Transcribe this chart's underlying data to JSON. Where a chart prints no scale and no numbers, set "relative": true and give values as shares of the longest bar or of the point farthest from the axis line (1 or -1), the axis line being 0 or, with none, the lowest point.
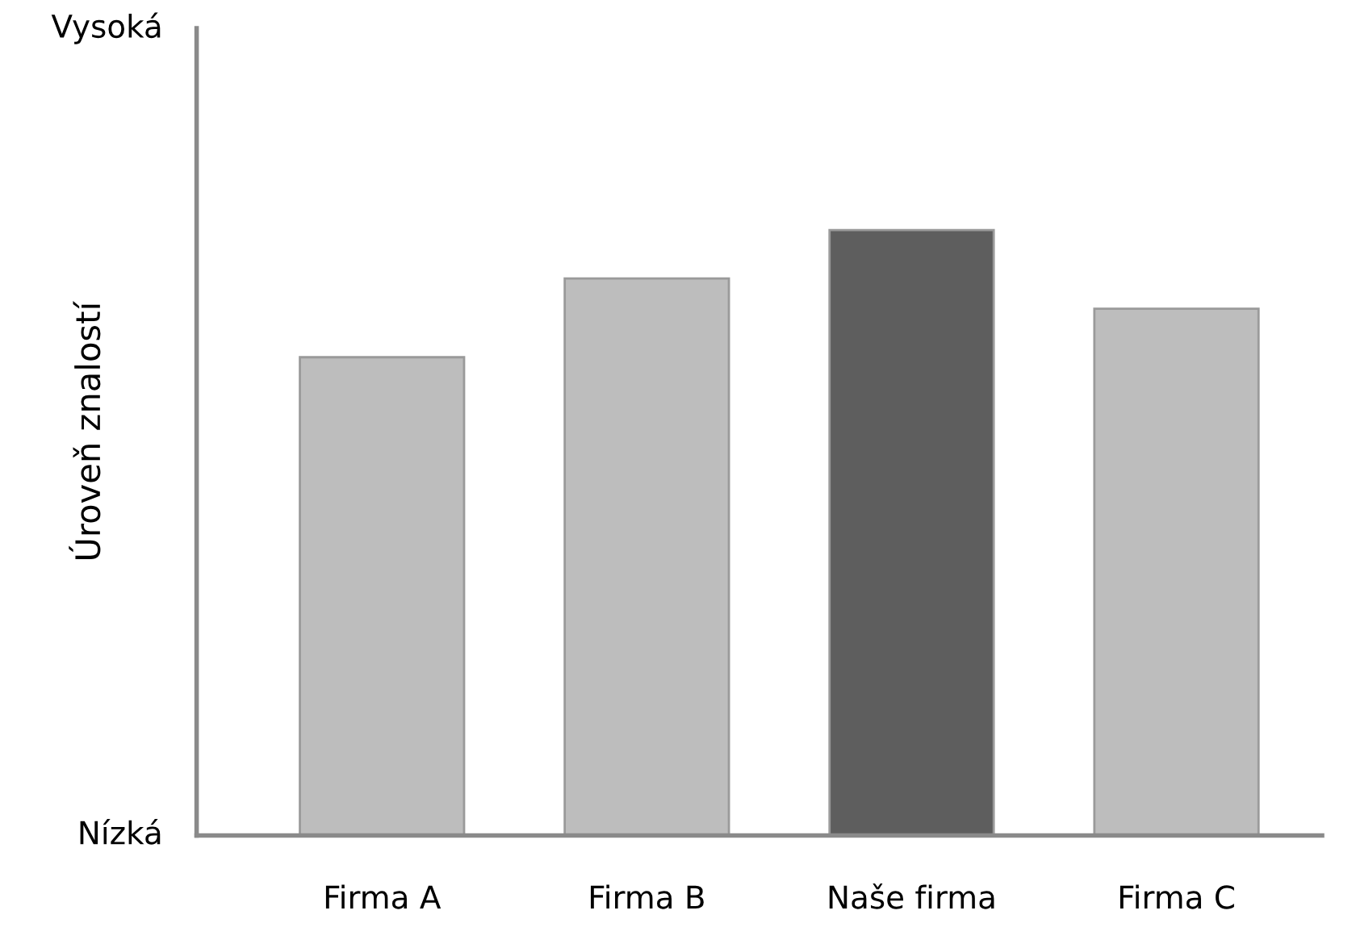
{
  "chart_data": {
    "type": "bar",
    "ylabel": "Úroveň znalostí",
    "relative": true,
    "categories": [
      "Firma A",
      "Firma B",
      "Naše firma",
      "Firma C"
    ],
    "values": [
      0.79,
      0.92,
      1,
      0.87
    ],
    "colors": [
      "#bdbdbd",
      "#bdbdbd",
      "#5e5e5e",
      "#bdbdbd"
    ],
    "annotations": [
      "Vysoká",
      "Nízká"
    ],
    "grid": false
  }
}
